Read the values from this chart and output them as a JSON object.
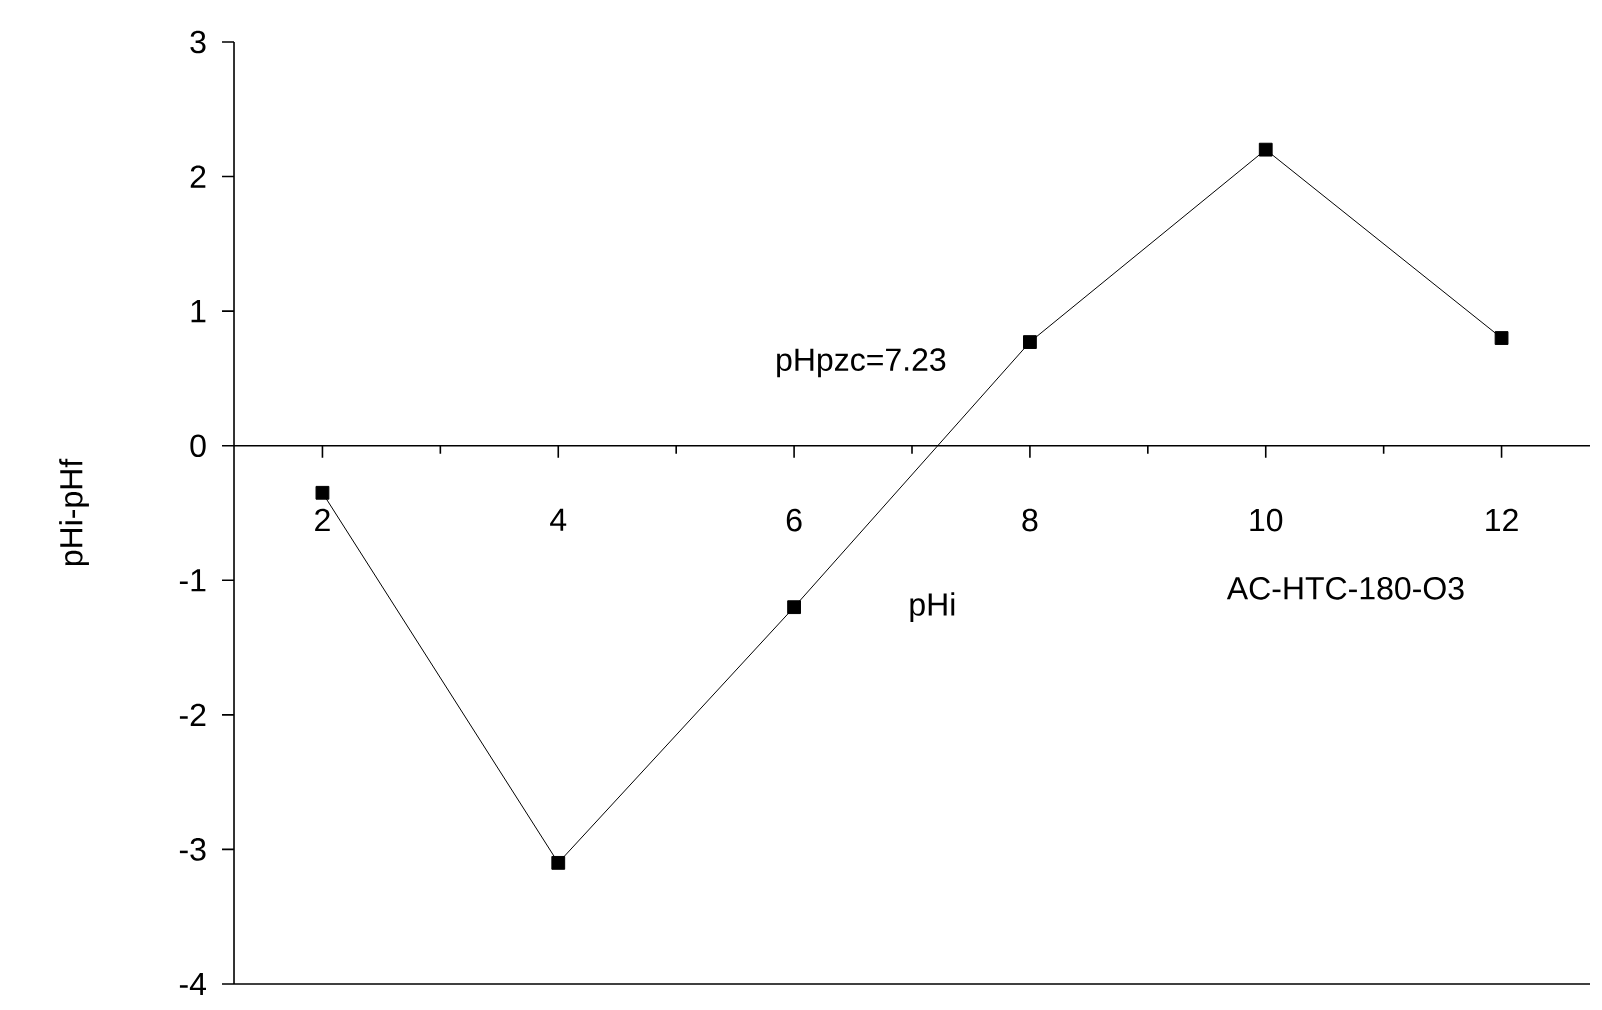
{
  "chart_data": {
    "type": "line",
    "xlabel": "pHi",
    "ylabel": "pHi-pHf",
    "x": [
      2,
      4,
      6,
      8,
      10,
      12
    ],
    "series": [
      {
        "color": "#000000",
        "values": [
          -0.35,
          -3.1,
          -1.2,
          0.77,
          2.2,
          0.8
        ]
      }
    ],
    "xlim": [
      1.25,
      12.75
    ],
    "ylim": [
      -4,
      3
    ],
    "xticks": [
      2,
      4,
      6,
      8,
      10,
      12
    ],
    "yticks": [
      -4,
      -3,
      -2,
      -1,
      0,
      1,
      2,
      3
    ],
    "grid": false,
    "marker": "square",
    "line_style": "solid",
    "annotations": [
      {
        "text": "pHpzc=7.23",
        "x": 7.23,
        "y": 0
      },
      "AC-HTC-180-O3"
    ]
  }
}
